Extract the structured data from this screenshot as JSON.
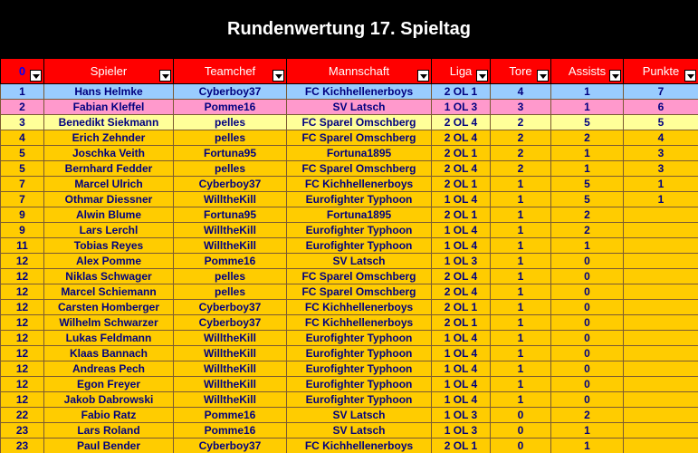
{
  "title": "Rundenwertung 17. Spieltag",
  "headers": [
    "0",
    "Spieler",
    "Teamchef",
    "Mannschaft",
    "Liga",
    "Tore",
    "Assists",
    "Punkte"
  ],
  "colors": {
    "title_bg": "#000000",
    "header_bg": "#ff0000",
    "row_first": "#99ccff",
    "row_second": "#ff99cc",
    "row_third": "#ffff99",
    "row_rest": "#ffcc00",
    "text": "#000080"
  },
  "rows": [
    {
      "rank": "1",
      "spieler": "Hans Helmke",
      "teamchef": "Cyberboy37",
      "mannschaft": "FC Kichhellenerboys",
      "liga": "2 OL 1",
      "tore": "4",
      "assists": "1",
      "punkte": "7",
      "style": "blue"
    },
    {
      "rank": "2",
      "spieler": "Fabian Kleffel",
      "teamchef": "Pomme16",
      "mannschaft": "SV Latsch",
      "liga": "1 OL 3",
      "tore": "3",
      "assists": "1",
      "punkte": "6",
      "style": "pink"
    },
    {
      "rank": "3",
      "spieler": "Benedikt Siekmann",
      "teamchef": "pelles",
      "mannschaft": "FC Sparel Omschberg",
      "liga": "2 OL 4",
      "tore": "2",
      "assists": "5",
      "punkte": "5",
      "style": "yellow"
    },
    {
      "rank": "4",
      "spieler": "Erich Zehnder",
      "teamchef": "pelles",
      "mannschaft": "FC Sparel Omschberg",
      "liga": "2 OL 4",
      "tore": "2",
      "assists": "2",
      "punkte": "4",
      "style": "orange"
    },
    {
      "rank": "5",
      "spieler": "Joschka Veith",
      "teamchef": "Fortuna95",
      "mannschaft": "Fortuna1895",
      "liga": "2 OL 1",
      "tore": "2",
      "assists": "1",
      "punkte": "3",
      "style": "orange"
    },
    {
      "rank": "5",
      "spieler": "Bernhard Fedder",
      "teamchef": "pelles",
      "mannschaft": "FC Sparel Omschberg",
      "liga": "2 OL 4",
      "tore": "2",
      "assists": "1",
      "punkte": "3",
      "style": "orange"
    },
    {
      "rank": "7",
      "spieler": "Marcel Ulrich",
      "teamchef": "Cyberboy37",
      "mannschaft": "FC Kichhellenerboys",
      "liga": "2 OL 1",
      "tore": "1",
      "assists": "5",
      "punkte": "1",
      "style": "orange"
    },
    {
      "rank": "7",
      "spieler": "Othmar Diessner",
      "teamchef": "WilltheKill",
      "mannschaft": "Eurofighter Typhoon",
      "liga": "1 OL 4",
      "tore": "1",
      "assists": "5",
      "punkte": "1",
      "style": "orange"
    },
    {
      "rank": "9",
      "spieler": "Alwin Blume",
      "teamchef": "Fortuna95",
      "mannschaft": "Fortuna1895",
      "liga": "2 OL 1",
      "tore": "1",
      "assists": "2",
      "punkte": "",
      "style": "orange"
    },
    {
      "rank": "9",
      "spieler": "Lars Lerchl",
      "teamchef": "WilltheKill",
      "mannschaft": "Eurofighter Typhoon",
      "liga": "1 OL 4",
      "tore": "1",
      "assists": "2",
      "punkte": "",
      "style": "orange"
    },
    {
      "rank": "11",
      "spieler": "Tobias Reyes",
      "teamchef": "WilltheKill",
      "mannschaft": "Eurofighter Typhoon",
      "liga": "1 OL 4",
      "tore": "1",
      "assists": "1",
      "punkte": "",
      "style": "orange"
    },
    {
      "rank": "12",
      "spieler": "Alex Pomme",
      "teamchef": "Pomme16",
      "mannschaft": "SV Latsch",
      "liga": "1 OL 3",
      "tore": "1",
      "assists": "0",
      "punkte": "",
      "style": "orange"
    },
    {
      "rank": "12",
      "spieler": "Niklas Schwager",
      "teamchef": "pelles",
      "mannschaft": "FC Sparel Omschberg",
      "liga": "2 OL 4",
      "tore": "1",
      "assists": "0",
      "punkte": "",
      "style": "orange"
    },
    {
      "rank": "12",
      "spieler": "Marcel Schiemann",
      "teamchef": "pelles",
      "mannschaft": "FC Sparel Omschberg",
      "liga": "2 OL 4",
      "tore": "1",
      "assists": "0",
      "punkte": "",
      "style": "orange"
    },
    {
      "rank": "12",
      "spieler": "Carsten Homberger",
      "teamchef": "Cyberboy37",
      "mannschaft": "FC Kichhellenerboys",
      "liga": "2 OL 1",
      "tore": "1",
      "assists": "0",
      "punkte": "",
      "style": "orange"
    },
    {
      "rank": "12",
      "spieler": "Wilhelm Schwarzer",
      "teamchef": "Cyberboy37",
      "mannschaft": "FC Kichhellenerboys",
      "liga": "2 OL 1",
      "tore": "1",
      "assists": "0",
      "punkte": "",
      "style": "orange"
    },
    {
      "rank": "12",
      "spieler": "Lukas Feldmann",
      "teamchef": "WilltheKill",
      "mannschaft": "Eurofighter Typhoon",
      "liga": "1 OL 4",
      "tore": "1",
      "assists": "0",
      "punkte": "",
      "style": "orange"
    },
    {
      "rank": "12",
      "spieler": "Klaas Bannach",
      "teamchef": "WilltheKill",
      "mannschaft": "Eurofighter Typhoon",
      "liga": "1 OL 4",
      "tore": "1",
      "assists": "0",
      "punkte": "",
      "style": "orange"
    },
    {
      "rank": "12",
      "spieler": "Andreas Pech",
      "teamchef": "WilltheKill",
      "mannschaft": "Eurofighter Typhoon",
      "liga": "1 OL 4",
      "tore": "1",
      "assists": "0",
      "punkte": "",
      "style": "orange"
    },
    {
      "rank": "12",
      "spieler": "Egon Freyer",
      "teamchef": "WilltheKill",
      "mannschaft": "Eurofighter Typhoon",
      "liga": "1 OL 4",
      "tore": "1",
      "assists": "0",
      "punkte": "",
      "style": "orange"
    },
    {
      "rank": "12",
      "spieler": "Jakob Dabrowski",
      "teamchef": "WilltheKill",
      "mannschaft": "Eurofighter Typhoon",
      "liga": "1 OL 4",
      "tore": "1",
      "assists": "0",
      "punkte": "",
      "style": "orange"
    },
    {
      "rank": "22",
      "spieler": "Fabio Ratz",
      "teamchef": "Pomme16",
      "mannschaft": "SV Latsch",
      "liga": "1 OL 3",
      "tore": "0",
      "assists": "2",
      "punkte": "",
      "style": "orange"
    },
    {
      "rank": "23",
      "spieler": "Lars Roland",
      "teamchef": "Pomme16",
      "mannschaft": "SV Latsch",
      "liga": "1 OL 3",
      "tore": "0",
      "assists": "1",
      "punkte": "",
      "style": "orange"
    },
    {
      "rank": "23",
      "spieler": "Paul Bender",
      "teamchef": "Cyberboy37",
      "mannschaft": "FC Kichhellenerboys",
      "liga": "2 OL 1",
      "tore": "0",
      "assists": "1",
      "punkte": "",
      "style": "orange"
    }
  ]
}
